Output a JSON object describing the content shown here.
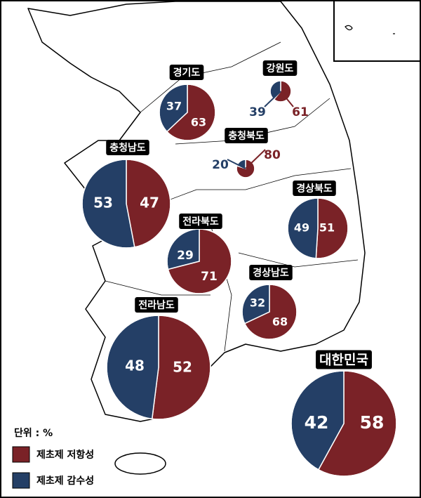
{
  "unit_label": "단위 : %",
  "legend": [
    {
      "name": "제초제 저항성",
      "color": "#7a2227"
    },
    {
      "name": "제초제 감수성",
      "color": "#243f66"
    }
  ],
  "regions": [
    {
      "name": "경기도",
      "values": [
        63,
        37
      ]
    },
    {
      "name": "강원도",
      "values": [
        61,
        39
      ]
    },
    {
      "name": "충청북도",
      "values": [
        80,
        20
      ]
    },
    {
      "name": "충청남도",
      "values": [
        47,
        53
      ]
    },
    {
      "name": "전라북도",
      "values": [
        71,
        29
      ]
    },
    {
      "name": "경상북도",
      "values": [
        51,
        49
      ]
    },
    {
      "name": "경상남도",
      "values": [
        68,
        32
      ]
    },
    {
      "name": "전라남도",
      "values": [
        52,
        48
      ]
    },
    {
      "name": "대한민국",
      "values": [
        58,
        42
      ]
    }
  ]
}
